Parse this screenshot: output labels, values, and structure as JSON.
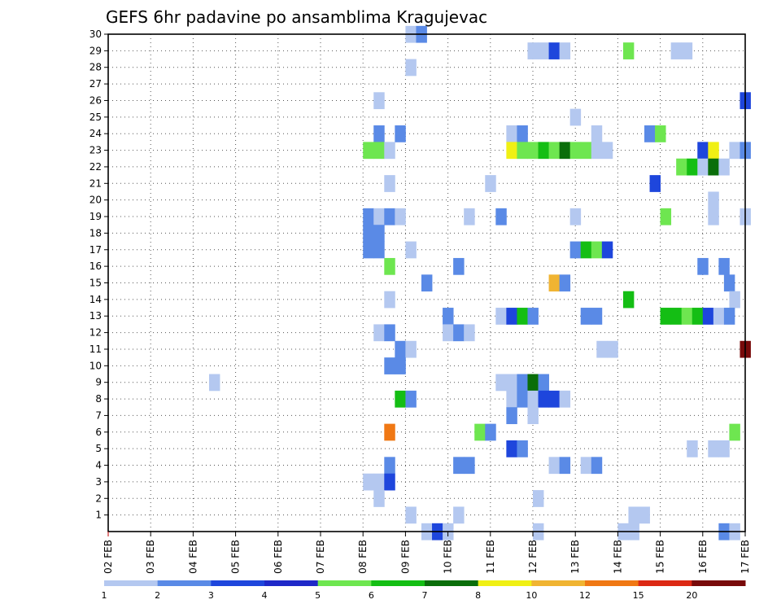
{
  "chart_data": {
    "type": "heatmap",
    "title": "GEFS 6hr padavine po ansamblima Kragujevac",
    "xlabel": "",
    "ylabel": "",
    "x_ticks": [
      "02 FEB",
      "03 FEB",
      "04 FEB",
      "05 FEB",
      "06 FEB",
      "07 FEB",
      "08 FEB",
      "09 FEB",
      "10 FEB",
      "11 FEB",
      "12 FEB",
      "13 FEB",
      "14 FEB",
      "15 FEB",
      "16 FEB",
      "17 FEB"
    ],
    "y_ticks": [
      1,
      2,
      3,
      4,
      5,
      6,
      7,
      8,
      9,
      10,
      11,
      12,
      13,
      14,
      15,
      16,
      17,
      18,
      19,
      20,
      21,
      22,
      23,
      24,
      25,
      26,
      27,
      28,
      29,
      30
    ],
    "x_unit": "6-hour step from 02 FEB 00z",
    "x_range": [
      0,
      60
    ],
    "y_range": [
      0,
      30
    ],
    "grid": true,
    "legend": {
      "placement": "bottom",
      "labels": [
        "1",
        "2",
        "3",
        "4",
        "5",
        "6",
        "7",
        "8",
        "10",
        "12",
        "15",
        "20"
      ],
      "colors": [
        "#b4c8f0",
        "#5a8ae6",
        "#1e46dc",
        "#1e28c8",
        "#6ee650",
        "#14be14",
        "#0a6e0a",
        "#f0f014",
        "#f0b432",
        "#f07814",
        "#dc2814",
        "#780a0a"
      ]
    },
    "colors": [
      "#b4c8f0",
      "#5a8ae6",
      "#1e46dc",
      "#6ee650",
      "#14be14",
      "#0a6e0a",
      "#f0f014",
      "#f0b432",
      "#f07814",
      "#780a0a"
    ],
    "cells": [
      [
        28.5,
        30,
        1
      ],
      [
        29.5,
        30,
        2
      ],
      [
        40,
        29,
        1
      ],
      [
        41,
        29,
        1
      ],
      [
        42,
        29,
        3
      ],
      [
        43,
        29,
        1
      ],
      [
        49,
        29,
        4
      ],
      [
        53.5,
        29,
        1
      ],
      [
        54.5,
        29,
        1
      ],
      [
        28.5,
        28,
        1
      ],
      [
        25.5,
        26,
        1
      ],
      [
        60,
        26,
        3
      ],
      [
        44,
        25,
        1
      ],
      [
        25.5,
        24,
        2
      ],
      [
        27.5,
        24,
        2
      ],
      [
        38,
        24,
        1
      ],
      [
        39,
        24,
        2
      ],
      [
        46,
        24,
        1
      ],
      [
        51,
        24,
        2
      ],
      [
        52,
        24,
        4
      ],
      [
        24.5,
        23,
        4
      ],
      [
        25.5,
        23,
        4
      ],
      [
        26.5,
        23,
        1
      ],
      [
        38,
        23,
        7
      ],
      [
        39,
        23,
        4
      ],
      [
        40,
        23,
        4
      ],
      [
        41,
        23,
        5
      ],
      [
        42,
        23,
        4
      ],
      [
        43,
        23,
        6
      ],
      [
        44,
        23,
        4
      ],
      [
        45,
        23,
        4
      ],
      [
        46,
        23,
        1
      ],
      [
        47,
        23,
        1
      ],
      [
        56,
        23,
        3
      ],
      [
        57,
        23,
        7
      ],
      [
        59,
        23,
        1
      ],
      [
        60,
        23,
        2
      ],
      [
        54,
        22,
        4
      ],
      [
        55,
        22,
        5
      ],
      [
        56,
        22,
        1
      ],
      [
        57,
        22,
        6
      ],
      [
        58,
        22,
        1
      ],
      [
        26.5,
        21,
        1
      ],
      [
        36,
        21,
        1
      ],
      [
        51.5,
        21,
        3
      ],
      [
        57,
        20,
        1
      ],
      [
        37,
        19,
        2
      ],
      [
        24.5,
        19,
        2
      ],
      [
        25.5,
        19,
        1
      ],
      [
        26.5,
        19,
        2
      ],
      [
        27.5,
        19,
        1
      ],
      [
        34,
        19,
        1
      ],
      [
        44,
        19,
        1
      ],
      [
        52.5,
        19,
        4
      ],
      [
        57,
        19,
        1
      ],
      [
        60,
        19,
        1
      ],
      [
        24.5,
        18,
        2
      ],
      [
        25.5,
        18,
        2
      ],
      [
        24.5,
        17,
        2
      ],
      [
        25.5,
        17,
        2
      ],
      [
        28.5,
        17,
        1
      ],
      [
        44,
        17,
        2
      ],
      [
        45,
        17,
        5
      ],
      [
        46,
        17,
        4
      ],
      [
        47,
        17,
        3
      ],
      [
        26.5,
        16,
        4
      ],
      [
        33,
        16,
        2
      ],
      [
        56,
        16,
        2
      ],
      [
        58,
        16,
        2
      ],
      [
        30,
        15,
        2
      ],
      [
        42,
        15,
        8
      ],
      [
        43,
        15,
        2
      ],
      [
        58.5,
        15,
        2
      ],
      [
        26.5,
        14,
        1
      ],
      [
        49,
        14,
        5
      ],
      [
        59,
        14,
        1
      ],
      [
        32,
        13,
        2
      ],
      [
        37,
        13,
        1
      ],
      [
        38,
        13,
        3
      ],
      [
        39,
        13,
        5
      ],
      [
        40,
        13,
        2
      ],
      [
        45,
        13,
        2
      ],
      [
        46,
        13,
        2
      ],
      [
        52.5,
        13,
        5
      ],
      [
        53.5,
        13,
        5
      ],
      [
        54.5,
        13,
        4
      ],
      [
        55.5,
        13,
        5
      ],
      [
        56.5,
        13,
        3
      ],
      [
        57.5,
        13,
        1
      ],
      [
        58.5,
        13,
        2
      ],
      [
        25.5,
        12,
        1
      ],
      [
        26.5,
        12,
        2
      ],
      [
        32,
        12,
        1
      ],
      [
        33,
        12,
        2
      ],
      [
        34,
        12,
        1
      ],
      [
        27.5,
        11,
        2
      ],
      [
        28.5,
        11,
        1
      ],
      [
        46.5,
        11,
        1
      ],
      [
        47.5,
        11,
        1
      ],
      [
        60,
        11,
        10
      ],
      [
        26.5,
        10,
        2
      ],
      [
        27.5,
        10,
        2
      ],
      [
        10,
        9,
        1
      ],
      [
        37,
        9,
        1
      ],
      [
        38,
        9,
        1
      ],
      [
        39,
        9,
        2
      ],
      [
        40,
        9,
        6
      ],
      [
        41,
        9,
        2
      ],
      [
        27.5,
        8,
        5
      ],
      [
        28.5,
        8,
        2
      ],
      [
        38,
        8,
        1
      ],
      [
        39,
        8,
        2
      ],
      [
        40,
        8,
        1
      ],
      [
        41,
        8,
        3
      ],
      [
        42,
        8,
        3
      ],
      [
        43,
        8,
        1
      ],
      [
        38,
        7,
        2
      ],
      [
        40,
        7,
        1
      ],
      [
        26.5,
        6,
        9
      ],
      [
        35,
        6,
        4
      ],
      [
        36,
        6,
        2
      ],
      [
        59,
        6,
        4
      ],
      [
        38,
        5,
        3
      ],
      [
        39,
        5,
        2
      ],
      [
        55,
        5,
        1
      ],
      [
        57,
        5,
        1
      ],
      [
        58,
        5,
        1
      ],
      [
        26.5,
        4,
        2
      ],
      [
        33,
        4,
        2
      ],
      [
        34,
        4,
        2
      ],
      [
        42,
        4,
        1
      ],
      [
        43,
        4,
        2
      ],
      [
        45,
        4,
        1
      ],
      [
        46,
        4,
        2
      ],
      [
        24.5,
        3,
        1
      ],
      [
        25.5,
        3,
        1
      ],
      [
        26.5,
        3,
        3
      ],
      [
        25.5,
        2,
        1
      ],
      [
        40.5,
        2,
        1
      ],
      [
        28.5,
        1,
        1
      ],
      [
        33,
        1,
        1
      ],
      [
        49.5,
        1,
        1
      ],
      [
        50.5,
        1,
        1
      ],
      [
        30,
        0,
        1
      ],
      [
        31,
        0,
        3
      ],
      [
        32,
        0,
        1
      ],
      [
        40.5,
        0,
        1
      ],
      [
        48.5,
        0,
        1
      ],
      [
        49.5,
        0,
        1
      ],
      [
        58,
        0,
        2
      ],
      [
        59,
        0,
        1
      ]
    ]
  }
}
